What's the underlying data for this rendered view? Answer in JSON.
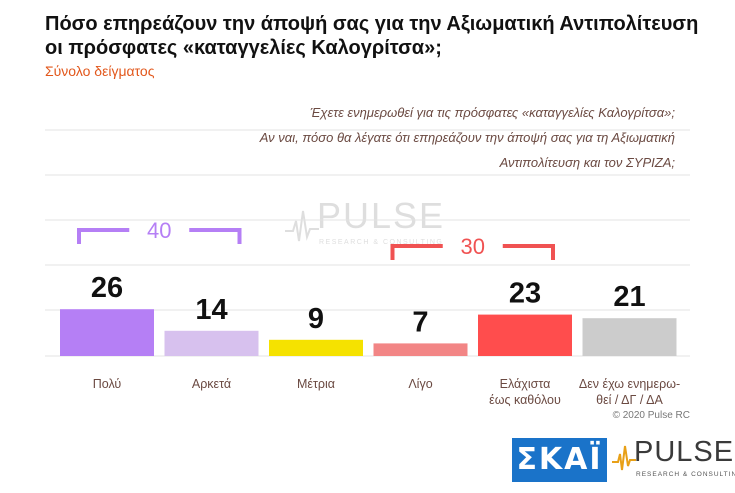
{
  "title": "Πόσο επηρεάζουν την άποψή σας για την Αξιωματική Αντιπολίτευση οι πρόσφατες «καταγγελίες Καλογρίτσα»;",
  "subtitle": "Σύνολο δείγματος",
  "question_lines": [
    "Έχετε ενημερωθεί για τις πρόσφατες «καταγγελίες Καλογρίτσα»;",
    "Αν ναι, πόσο θα λέγατε ότι επηρεάζουν την άποψή σας για τη Αξιωματική",
    "Αντιπολίτευση και τον ΣΥΡΙΖΑ;"
  ],
  "copyright": "© 2020 Pulse RC",
  "logos": {
    "skai": "ΣΚΑΪ",
    "pulse": "PULSE",
    "pulse_tagline": "RESEARCH & CONSULTING"
  },
  "colors": {
    "bars": [
      "#b57ff5",
      "#d7c1ee",
      "#f5e200",
      "#f28585",
      "#ff4d4d",
      "#cccccc"
    ],
    "bracket_purple": "#b57ff5",
    "bracket_red": "#f05252",
    "grid": "#e3e3e3",
    "label_text": "#6b4a42"
  },
  "chart_data": {
    "type": "bar",
    "categories": [
      "Πολύ",
      "Αρκετά",
      "Μέτρια",
      "Λίγο",
      "Ελάχιστα\nέως καθόλου",
      "Δεν έχω ενημερω-\nθεί / ΔΓ / ΔΑ"
    ],
    "values": [
      26,
      14,
      9,
      7,
      23,
      21
    ],
    "ylim": [
      0,
      100
    ],
    "grid": true,
    "annotations": [
      {
        "label": "40",
        "span": [
          "Πολύ",
          "Αρκετά"
        ]
      },
      {
        "label": "30",
        "span": [
          "Λίγο",
          "Ελάχιστα\nέως καθόλου"
        ]
      }
    ]
  }
}
